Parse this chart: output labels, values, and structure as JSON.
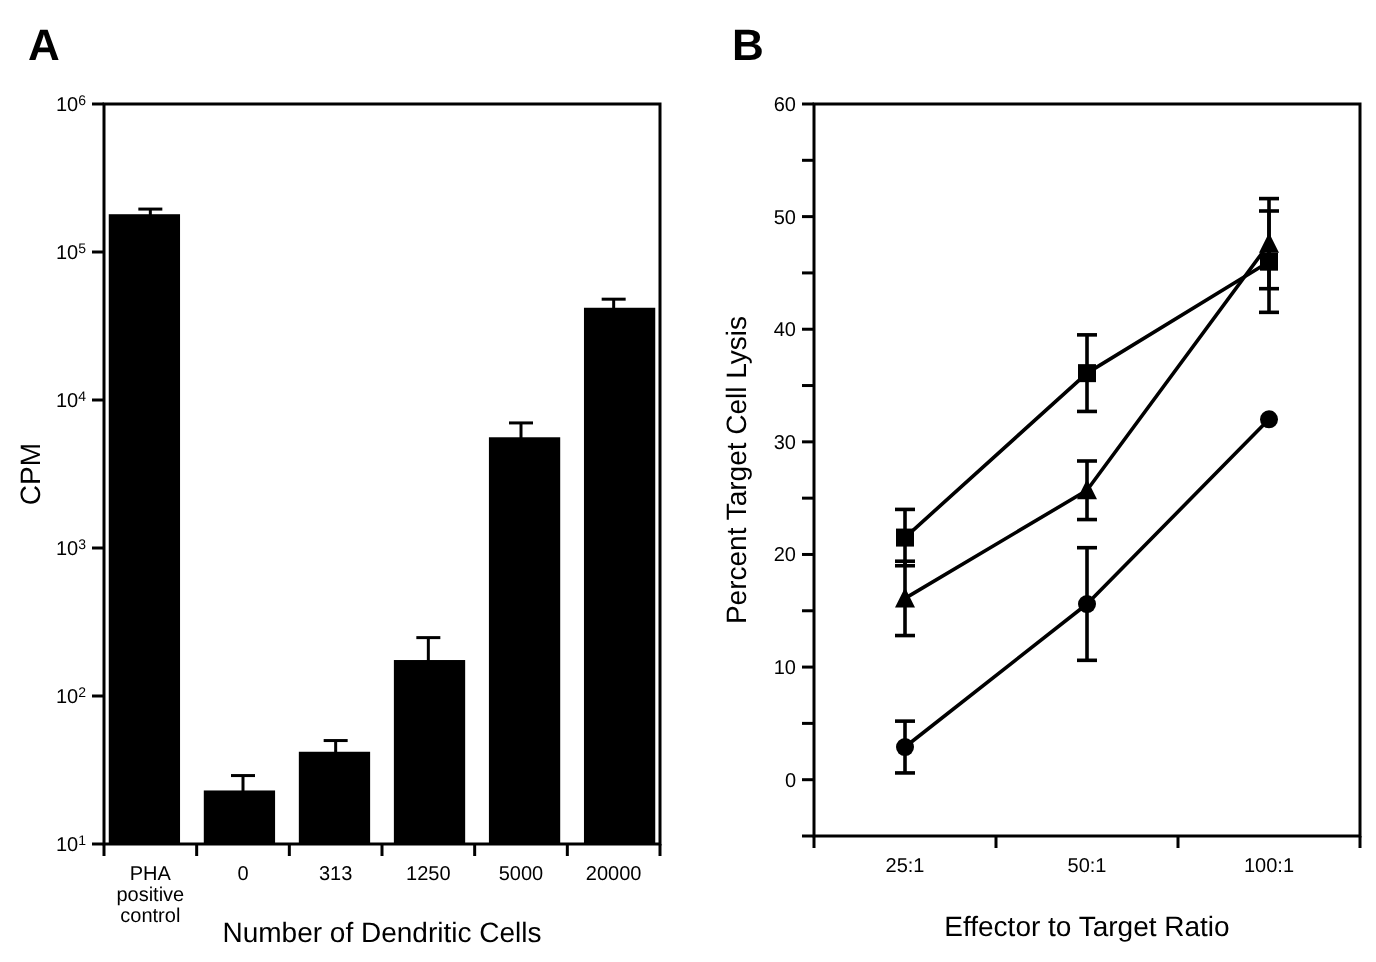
{
  "chart_data": [
    {
      "type": "bar",
      "title": "A",
      "xlabel": "Number of Dendritic Cells",
      "ylabel": "CPM",
      "log": "y",
      "categories": [
        "PHA\npositive\ncontrol",
        "0",
        "313",
        "1250",
        "5000",
        "20000"
      ],
      "series": [
        {
          "color": "#000000",
          "values": [
            180000,
            23,
            42,
            175,
            5600,
            42000
          ],
          "errors": [
            15000,
            6,
            8,
            73,
            1400,
            6000
          ]
        }
      ],
      "ylim": [
        10,
        1000000
      ],
      "yticks": [
        {
          "value": 10,
          "label": "10$^{1}$"
        },
        {
          "value": 100,
          "label": "10$^{2}$"
        },
        {
          "value": 1000,
          "label": "10$^{3}$"
        },
        {
          "value": 10000,
          "label": "10$^{4}$"
        },
        {
          "value": 100000,
          "label": "10$^{5}$"
        },
        {
          "value": 1000000,
          "label": "10$^{6}$"
        }
      ],
      "grid": false
    },
    {
      "type": "line",
      "title": "B",
      "xlabel": "Effector to Target Ratio",
      "ylabel": "Percent Target Cell Lysis",
      "categories": [
        "25:1",
        "50:1",
        "100:1"
      ],
      "series": [
        {
          "color": "#000000",
          "marker": "square",
          "values": [
            21.5,
            36.1,
            46.0
          ],
          "errors": [
            2.5,
            3.4,
            4.5
          ]
        },
        {
          "color": "#000000",
          "marker": "triangle",
          "values": [
            16.1,
            25.7,
            47.6
          ],
          "errors": [
            3.3,
            2.6,
            4
          ]
        },
        {
          "color": "#000000",
          "marker": "circle",
          "values": [
            2.9,
            15.6,
            32.0
          ],
          "errors": [
            2.3,
            5,
            null
          ]
        }
      ],
      "ylim": [
        -5,
        60
      ],
      "yticks": [
        {
          "value": -5,
          "label": null
        },
        0,
        {
          "value": 5,
          "label": null
        },
        10,
        {
          "value": 15,
          "label": null
        },
        20,
        {
          "value": 25,
          "label": null
        },
        30,
        {
          "value": 35,
          "label": null
        },
        40,
        {
          "value": 45,
          "label": null
        },
        50,
        {
          "value": 55,
          "label": null
        },
        60
      ],
      "grid": false,
      "line_style": "solid"
    }
  ]
}
